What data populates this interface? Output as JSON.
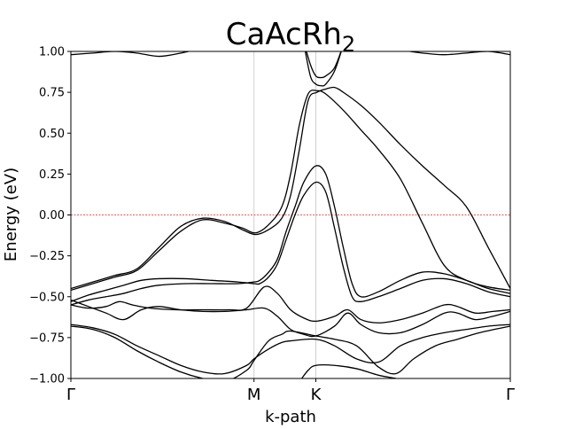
{
  "chart_data": {
    "type": "line",
    "title_main": "CaAcRh",
    "title_sub": "2",
    "xlabel": "k-path",
    "ylabel": "Energy (eV)",
    "ylim": [
      -1.0,
      1.0
    ],
    "yticks": [
      -1.0,
      -0.75,
      -0.5,
      -0.25,
      0.0,
      0.25,
      0.5,
      0.75,
      1.0
    ],
    "ytick_labels": [
      "−1.00",
      "−0.75",
      "−0.50",
      "−0.25",
      "0.00",
      "0.25",
      "0.50",
      "0.75",
      "1.00"
    ],
    "xlim": [
      0,
      1
    ],
    "kpoints": [
      {
        "label": "Γ",
        "pos": 0.0
      },
      {
        "label": "M",
        "pos": 0.4167
      },
      {
        "label": "K",
        "pos": 0.5574
      },
      {
        "label": "Γ",
        "pos": 1.0
      }
    ],
    "fermi_level": 0.0,
    "grid": "vertical at k-points",
    "colors": {
      "bands": "#000000",
      "fermi": "#d62728",
      "kline": "#cfcfcf"
    },
    "series": [
      {
        "x": [
          0.0,
          0.05,
          0.1,
          0.15,
          0.2,
          0.25,
          0.3,
          0.35,
          0.3903,
          0.42,
          0.45,
          0.48,
          0.5,
          0.52,
          0.54,
          0.56,
          0.58,
          0.62,
          0.66,
          0.7,
          0.75,
          0.8,
          0.85,
          0.9,
          0.95,
          1.0
        ],
        "y": [
          -0.46,
          -0.42,
          -0.38,
          -0.34,
          -0.22,
          -0.1,
          -0.03,
          -0.05,
          -0.08,
          -0.11,
          -0.06,
          0.05,
          0.25,
          0.55,
          0.74,
          0.76,
          0.74,
          0.64,
          0.52,
          0.4,
          0.22,
          -0.05,
          -0.31,
          -0.4,
          -0.44,
          -0.46
        ]
      },
      {
        "x": [
          0.0,
          0.05,
          0.1,
          0.15,
          0.2,
          0.25,
          0.3,
          0.35,
          0.39,
          0.42,
          0.45,
          0.48,
          0.5,
          0.52,
          0.54,
          0.56,
          0.58,
          0.6,
          0.62,
          0.66,
          0.7,
          0.75,
          0.8,
          0.85,
          0.9,
          0.95,
          1.0
        ],
        "y": [
          -0.45,
          -0.41,
          -0.37,
          -0.33,
          -0.2,
          -0.07,
          -0.02,
          -0.04,
          -0.09,
          -0.12,
          -0.09,
          -0.02,
          0.12,
          0.4,
          0.7,
          0.75,
          0.77,
          0.78,
          0.75,
          0.67,
          0.57,
          0.43,
          0.3,
          0.18,
          0.05,
          -0.2,
          -0.45
        ]
      },
      {
        "x": [
          0.0,
          0.04,
          0.08,
          0.12,
          0.16,
          0.2,
          0.26,
          0.32,
          0.38,
          0.4167,
          0.43,
          0.45,
          0.47,
          0.49,
          0.51,
          0.53,
          0.5574,
          0.58,
          0.6,
          0.62,
          0.64,
          0.66,
          0.7,
          0.75,
          0.8,
          0.85,
          0.9,
          0.95,
          1.0
        ],
        "y": [
          -0.55,
          -0.52,
          -0.5,
          -0.48,
          -0.45,
          -0.43,
          -0.42,
          -0.42,
          -0.42,
          -0.41,
          -0.4,
          -0.35,
          -0.27,
          -0.1,
          0.05,
          0.2,
          0.3,
          0.25,
          0.05,
          -0.2,
          -0.42,
          -0.5,
          -0.47,
          -0.4,
          -0.35,
          -0.36,
          -0.4,
          -0.45,
          -0.48
        ]
      },
      {
        "x": [
          0.0,
          0.04,
          0.08,
          0.12,
          0.16,
          0.2,
          0.26,
          0.32,
          0.38,
          0.4167,
          0.43,
          0.45,
          0.47,
          0.49,
          0.51,
          0.53,
          0.5574,
          0.58,
          0.6,
          0.62,
          0.64,
          0.66,
          0.7,
          0.75,
          0.8,
          0.85,
          0.9,
          0.95,
          1.0
        ],
        "y": [
          -0.53,
          -0.49,
          -0.46,
          -0.43,
          -0.4,
          -0.39,
          -0.39,
          -0.4,
          -0.41,
          -0.42,
          -0.42,
          -0.38,
          -0.3,
          -0.15,
          0.0,
          0.12,
          0.2,
          0.14,
          -0.08,
          -0.32,
          -0.5,
          -0.53,
          -0.5,
          -0.45,
          -0.4,
          -0.39,
          -0.42,
          -0.47,
          -0.5
        ]
      },
      {
        "x": [
          0.0,
          0.04,
          0.08,
          0.11,
          0.14,
          0.18,
          0.24,
          0.3,
          0.36,
          0.4,
          0.44,
          0.47,
          0.5,
          0.53,
          0.5574,
          0.6,
          0.63,
          0.66,
          0.7,
          0.75,
          0.8,
          0.85,
          0.88,
          0.92,
          0.96,
          1.0
        ],
        "y": [
          -0.55,
          -0.57,
          -0.56,
          -0.53,
          -0.55,
          -0.57,
          -0.58,
          -0.58,
          -0.58,
          -0.57,
          -0.44,
          -0.48,
          -0.58,
          -0.63,
          -0.65,
          -0.62,
          -0.58,
          -0.64,
          -0.66,
          -0.64,
          -0.6,
          -0.55,
          -0.56,
          -0.6,
          -0.59,
          -0.58
        ]
      },
      {
        "x": [
          0.0,
          0.04,
          0.08,
          0.12,
          0.16,
          0.2,
          0.25,
          0.3,
          0.35,
          0.4,
          0.44,
          0.47,
          0.5,
          0.53,
          0.5574,
          0.6,
          0.63,
          0.66,
          0.7,
          0.75,
          0.8,
          0.85,
          0.88,
          0.92,
          0.96,
          1.0
        ],
        "y": [
          -0.52,
          -0.56,
          -0.6,
          -0.64,
          -0.58,
          -0.56,
          -0.58,
          -0.59,
          -0.59,
          -0.58,
          -0.57,
          -0.62,
          -0.7,
          -0.73,
          -0.74,
          -0.68,
          -0.6,
          -0.67,
          -0.72,
          -0.72,
          -0.67,
          -0.6,
          -0.6,
          -0.64,
          -0.62,
          -0.59
        ]
      },
      {
        "x": [
          0.0,
          0.05,
          0.1,
          0.15,
          0.2,
          0.25,
          0.3,
          0.35,
          0.4,
          0.4167,
          0.45,
          0.48,
          0.5,
          0.5574,
          0.6,
          0.65,
          0.7,
          0.75,
          0.8,
          0.85,
          0.9,
          0.95,
          1.0
        ],
        "y": [
          -0.67,
          -0.69,
          -0.73,
          -0.8,
          -0.86,
          -0.92,
          -0.96,
          -0.97,
          -0.92,
          -0.88,
          -0.82,
          -0.78,
          -0.77,
          -0.76,
          -0.8,
          -0.88,
          -0.9,
          -0.8,
          -0.75,
          -0.72,
          -0.7,
          -0.68,
          -0.67
        ]
      },
      {
        "x": [
          0.0,
          0.05,
          0.1,
          0.15,
          0.2,
          0.25,
          0.3,
          0.35,
          0.4,
          0.4167,
          0.45,
          0.48,
          0.5,
          0.5574,
          0.6,
          0.65,
          0.7,
          0.74,
          0.78,
          0.83,
          0.88,
          0.93,
          1.0
        ],
        "y": [
          -0.68,
          -0.7,
          -0.75,
          -0.83,
          -0.9,
          -0.96,
          -1.0,
          -1.02,
          -0.95,
          -0.89,
          -0.77,
          -0.73,
          -0.71,
          -0.74,
          -0.76,
          -0.8,
          -0.93,
          -0.97,
          -0.88,
          -0.8,
          -0.76,
          -0.72,
          -0.68
        ]
      },
      {
        "x": [
          0.52,
          0.54,
          0.5574,
          0.6,
          0.65,
          0.7,
          0.74,
          0.78
        ],
        "y": [
          -1.02,
          -0.95,
          -0.92,
          -0.92,
          -0.94,
          -0.98,
          -1.0,
          -1.02
        ]
      },
      {
        "x": [
          0.0,
          0.05,
          0.1,
          0.15,
          0.2,
          0.25,
          0.3,
          0.35
        ],
        "y": [
          0.98,
          0.99,
          1.0,
          0.99,
          0.97,
          0.99,
          1.02,
          1.04
        ]
      },
      {
        "x": [
          0.7,
          0.75,
          0.8,
          0.85,
          0.9,
          0.95,
          1.0
        ],
        "y": [
          1.04,
          1.01,
          0.99,
          0.98,
          0.99,
          1.0,
          0.98
        ]
      },
      {
        "x": [
          0.53,
          0.545,
          0.5574,
          0.57,
          0.58,
          0.6,
          0.62
        ],
        "y": [
          1.05,
          0.85,
          0.8,
          0.79,
          0.8,
          0.88,
          1.04
        ]
      },
      {
        "x": [
          0.53,
          0.545,
          0.5574,
          0.57,
          0.58,
          0.6,
          0.62
        ],
        "y": [
          1.06,
          0.92,
          0.85,
          0.84,
          0.85,
          0.9,
          1.04
        ]
      }
    ]
  }
}
